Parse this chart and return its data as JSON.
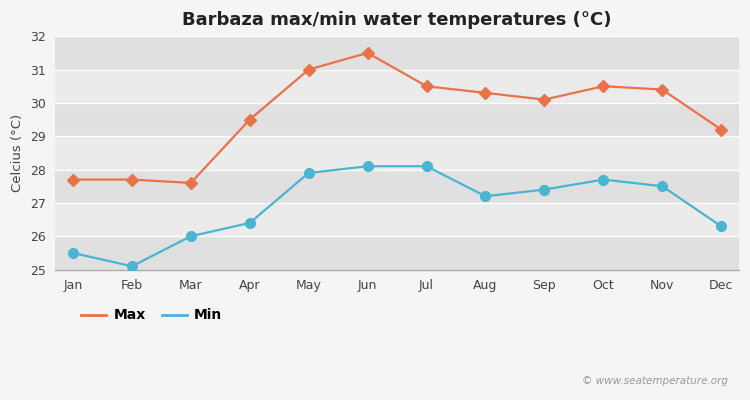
{
  "title": "Barbaza max/min water temperatures (°C)",
  "ylabel": "Celcius (°C)",
  "months": [
    "Jan",
    "Feb",
    "Mar",
    "Apr",
    "May",
    "Jun",
    "Jul",
    "Aug",
    "Sep",
    "Oct",
    "Nov",
    "Dec"
  ],
  "max_temps": [
    27.7,
    27.7,
    27.6,
    29.5,
    31.0,
    31.5,
    30.5,
    30.3,
    30.1,
    30.5,
    30.4,
    29.2
  ],
  "min_temps": [
    25.5,
    25.1,
    26.0,
    26.4,
    27.9,
    28.1,
    28.1,
    27.2,
    27.4,
    27.7,
    27.5,
    26.3
  ],
  "max_color": "#e8724a",
  "min_color": "#4ab5d0",
  "background_color": "#f5f5f5",
  "plot_bg_color": "#ebebeb",
  "band_colors": [
    "#e0e0e0",
    "#ebebeb"
  ],
  "grid_color": "#ffffff",
  "ylim": [
    25,
    32
  ],
  "yticks": [
    25,
    26,
    27,
    28,
    29,
    30,
    31,
    32
  ],
  "watermark": "© www.seatemperature.org",
  "legend_max": "Max",
  "legend_min": "Min",
  "title_fontsize": 13,
  "label_fontsize": 9.5,
  "tick_fontsize": 9,
  "legend_fontsize": 10,
  "marker_size_max": 6,
  "marker_size_min": 7,
  "line_width": 1.6
}
